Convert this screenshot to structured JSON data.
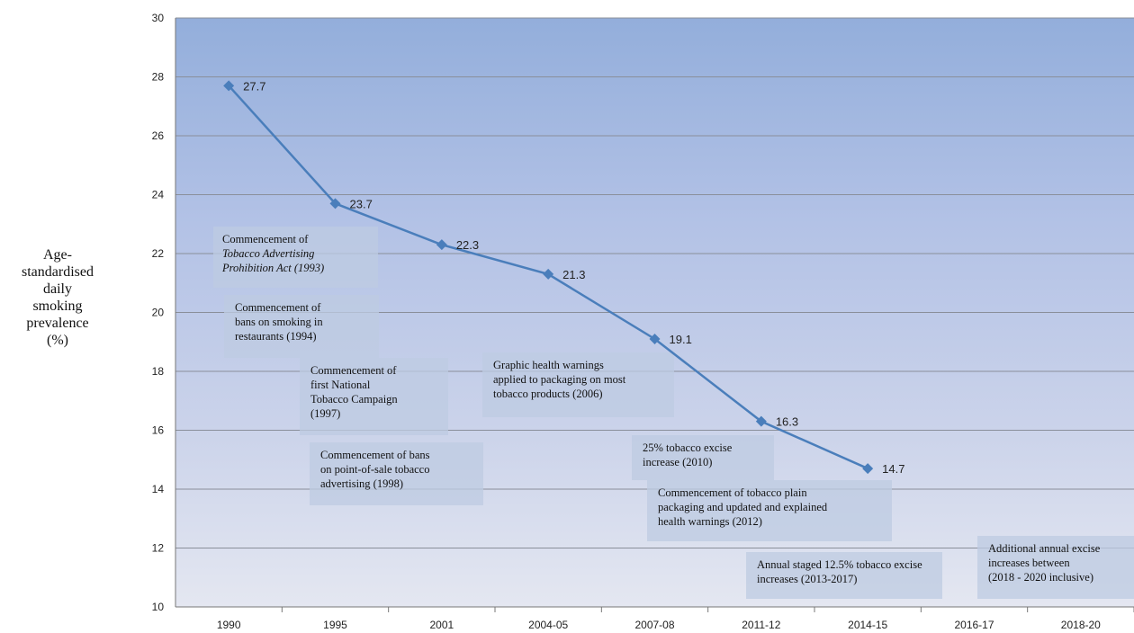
{
  "chart_data": {
    "type": "line",
    "ylabel": [
      "Age-",
      "standardised",
      "daily",
      "smoking",
      "prevalence",
      "(%)"
    ],
    "categories": [
      "1990",
      "1995",
      "2001",
      "2004-05",
      "2007-08",
      "2011-12",
      "2014-15",
      "2016-17",
      "2018-20"
    ],
    "series": [
      {
        "name": "Age-standardised daily smoking prevalence",
        "color": "#4a7ebb",
        "values": [
          27.7,
          23.7,
          22.3,
          21.3,
          19.1,
          16.3,
          14.7,
          null,
          null
        ]
      }
    ],
    "ylim": [
      10,
      30
    ],
    "yticks": [
      10,
      12,
      14,
      16,
      18,
      20,
      22,
      24,
      26,
      28,
      30
    ],
    "grid": true,
    "annotations": [
      [
        "Commencement of",
        "Tobacco Advertising",
        "Prohibition Act (1993)"
      ],
      [
        "Commencement of",
        "bans on smoking in",
        "restaurants (1994)"
      ],
      [
        "Commencement of",
        "first National",
        "Tobacco Campaign",
        "(1997)"
      ],
      [
        "Commencement of bans",
        "on point-of-sale tobacco",
        "advertising (1998)"
      ],
      [
        "Graphic health warnings",
        "applied to packaging on most",
        "tobacco products (2006)"
      ],
      [
        "25% tobacco excise",
        "increase (2010)"
      ],
      [
        "Commencement of tobacco plain",
        "packaging and updated and explained",
        "health warnings (2012)"
      ],
      [
        "Annual staged 12.5% tobacco excise",
        "increases (2013-2017)"
      ],
      [
        "Additional annual excise",
        "increases between",
        "(2018 - 2020 inclusive)"
      ]
    ]
  }
}
